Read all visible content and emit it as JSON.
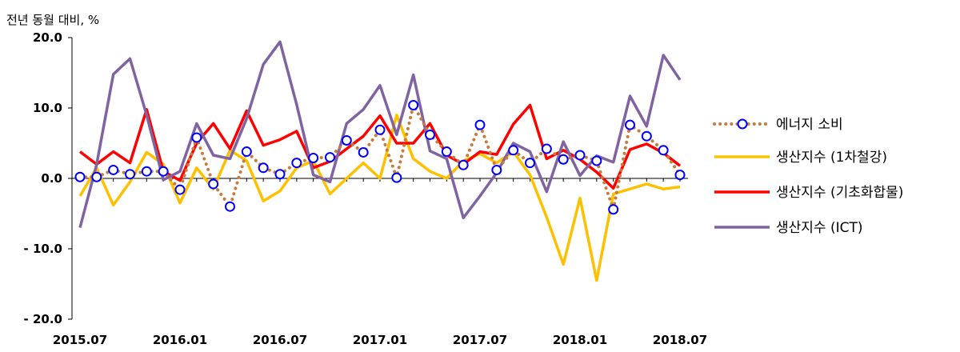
{
  "chart_data": {
    "type": "line",
    "ylabel": "전년 동월 대비, %",
    "ylim": [
      -20,
      20
    ],
    "yticks": [
      {
        "value": 20,
        "label": "20.0"
      },
      {
        "value": 10,
        "label": "10.0"
      },
      {
        "value": 0,
        "label": "0.0"
      },
      {
        "value": -10,
        "label": "- 10.0"
      },
      {
        "value": -20,
        "label": "- 20.0"
      }
    ],
    "xticks": [
      {
        "index": 0,
        "label": "2015.07"
      },
      {
        "index": 6,
        "label": "2016.01"
      },
      {
        "index": 12,
        "label": "2016.07"
      },
      {
        "index": 18,
        "label": "2017.01"
      },
      {
        "index": 24,
        "label": "2017.07"
      },
      {
        "index": 30,
        "label": "2018.01"
      },
      {
        "index": 36,
        "label": "2018.07"
      }
    ],
    "x": [
      "2015.07",
      "2015.08",
      "2015.09",
      "2015.10",
      "2015.11",
      "2015.12",
      "2016.01",
      "2016.02",
      "2016.03",
      "2016.04",
      "2016.05",
      "2016.06",
      "2016.07",
      "2016.08",
      "2016.09",
      "2016.10",
      "2016.11",
      "2016.12",
      "2017.01",
      "2017.02",
      "2017.03",
      "2017.04",
      "2017.05",
      "2017.06",
      "2017.07",
      "2017.08",
      "2017.09",
      "2017.10",
      "2017.11",
      "2017.12",
      "2018.01",
      "2018.02",
      "2018.03",
      "2018.04",
      "2018.05",
      "2018.06",
      "2018.07"
    ],
    "legend_position": "right",
    "grid": false,
    "series": [
      {
        "name": "에너지 소비",
        "color": "#C77C3C",
        "marker_color": "#0000FF",
        "style": "dotted-with-circles",
        "values": [
          0.2,
          0.2,
          1.2,
          0.6,
          1.0,
          1.0,
          -1.6,
          5.8,
          -0.8,
          -4.0,
          3.8,
          1.5,
          0.6,
          2.2,
          2.9,
          3.0,
          5.4,
          3.7,
          6.9,
          0.1,
          10.4,
          6.2,
          3.8,
          1.9,
          7.6,
          1.2,
          4.0,
          2.2,
          4.2,
          2.7,
          3.3,
          2.5,
          -4.4,
          7.6,
          6.0,
          4.0,
          0.5
        ]
      },
      {
        "name": "생산지수 (1차철강)",
        "color": "#FFC000",
        "style": "line",
        "values": [
          -2.5,
          1.5,
          -3.8,
          -0.5,
          3.7,
          2.0,
          -3.5,
          1.5,
          -1.5,
          4.0,
          2.5,
          -3.2,
          -1.8,
          1.5,
          2.5,
          -2.2,
          0.0,
          2.2,
          0.0,
          9.0,
          2.8,
          1.0,
          0.0,
          2.5,
          3.5,
          2.2,
          3.8,
          0.5,
          -5.5,
          -12.2,
          -2.8,
          -14.5,
          -2.2,
          -1.5,
          -0.8,
          -1.5,
          -1.2
        ]
      },
      {
        "name": "생산지수 (기초화합물)",
        "color": "#FF0000",
        "style": "line",
        "values": [
          3.8,
          2.0,
          3.8,
          2.2,
          9.8,
          1.0,
          -0.3,
          5.0,
          7.8,
          4.2,
          9.6,
          4.7,
          5.5,
          6.7,
          1.5,
          2.4,
          4.2,
          6.0,
          8.9,
          5.0,
          5.0,
          7.8,
          3.3,
          2.0,
          3.8,
          3.4,
          7.7,
          10.4,
          2.8,
          4.0,
          2.7,
          0.9,
          -1.4,
          4.1,
          4.9,
          3.6,
          1.8
        ]
      },
      {
        "name": "생산지수 (ICT)",
        "color": "#8064A2",
        "style": "line",
        "values": [
          -7.0,
          2.0,
          14.8,
          17.0,
          9.0,
          -0.2,
          1.0,
          7.8,
          3.3,
          2.8,
          8.5,
          16.2,
          19.4,
          10.5,
          0.5,
          -0.5,
          7.8,
          9.8,
          13.2,
          6.2,
          14.7,
          3.9,
          2.8,
          -5.6,
          -2.5,
          0.8,
          5.0,
          3.8,
          -1.9,
          5.2,
          0.4,
          3.2,
          2.3,
          11.7,
          7.4,
          17.5,
          14.0
        ]
      }
    ]
  }
}
